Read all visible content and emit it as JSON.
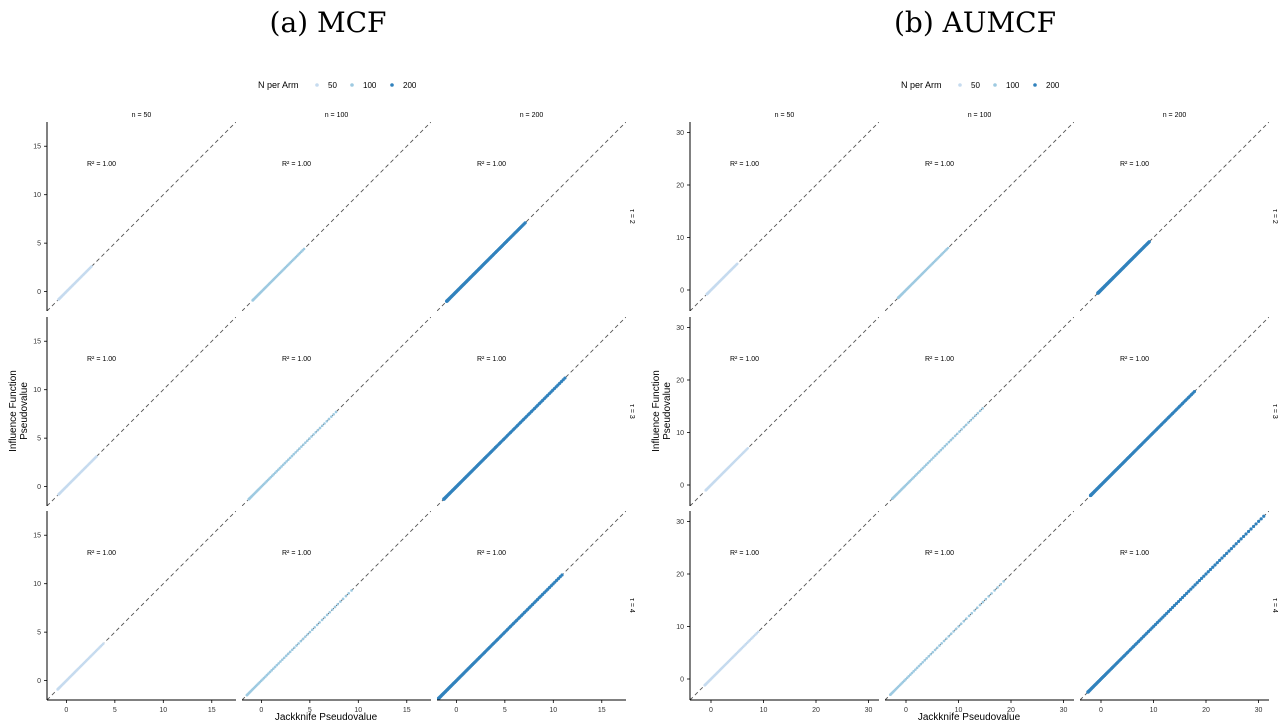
{
  "panels": [
    {
      "id": "mcf",
      "title": "(a) MCF",
      "chart_data": {
        "type": "scatter",
        "legend": {
          "title": "N per Arm",
          "entries": [
            "50",
            "100",
            "200"
          ],
          "placement": "top"
        },
        "colors": {
          "50": "#c6dbef",
          "100": "#9ecae1",
          "200": "#3182bd"
        },
        "xlabel": "Jackknife Pseudovalue",
        "ylabel": "Influence Function\nPseudovalue",
        "col_labels": [
          "n = 50",
          "n = 100",
          "n = 200"
        ],
        "row_labels": [
          "τ = 2",
          "τ = 3",
          "τ = 4"
        ],
        "annotation": "R² = 1.00",
        "xlim": [
          -2,
          17.5
        ],
        "ylim": [
          -2,
          17.5
        ],
        "xticks": [
          0,
          5,
          10,
          15
        ],
        "yticks": [
          0,
          5,
          10,
          15
        ],
        "reference_line": "y = x",
        "facets": [
          [
            [
              -0.8,
              2.6
            ],
            [
              -0.9,
              4.4
            ],
            [
              -1.0,
              7.1
            ]
          ],
          [
            [
              -0.8,
              3.1
            ],
            [
              -1.3,
              7.7
            ],
            [
              -1.3,
              11.2
            ]
          ],
          [
            [
              -0.9,
              3.8
            ],
            [
              -1.5,
              9.3
            ],
            [
              -1.9,
              10.9
            ]
          ]
        ]
      }
    },
    {
      "id": "aumcf",
      "title": "(b) AUMCF",
      "chart_data": {
        "type": "scatter",
        "legend": {
          "title": "N per Arm",
          "entries": [
            "50",
            "100",
            "200"
          ],
          "placement": "top"
        },
        "colors": {
          "50": "#c6dbef",
          "100": "#9ecae1",
          "200": "#3182bd"
        },
        "xlabel": "Jackknife Pseudovalue",
        "ylabel": "Influence Function\nPseudovalue",
        "col_labels": [
          "n = 50",
          "n = 100",
          "n = 200"
        ],
        "row_labels": [
          "τ = 2",
          "τ = 3",
          "τ = 4"
        ],
        "annotation": "R² = 1.00",
        "xlim": [
          -4,
          32
        ],
        "ylim": [
          -4,
          32
        ],
        "xticks": [
          0,
          10,
          20,
          30
        ],
        "yticks": [
          0,
          10,
          20,
          30
        ],
        "reference_line": "y = x",
        "facets": [
          [
            [
              -0.8,
              5.0
            ],
            [
              -1.5,
              8.0
            ],
            [
              -0.6,
              9.2
            ]
          ],
          [
            [
              -1.0,
              7.0
            ],
            [
              -2.6,
              14.6
            ],
            [
              -2.0,
              17.8
            ]
          ],
          [
            [
              -1.2,
              9.0
            ],
            [
              -3.0,
              18.6
            ],
            [
              -2.5,
              31.0
            ]
          ]
        ]
      }
    }
  ]
}
